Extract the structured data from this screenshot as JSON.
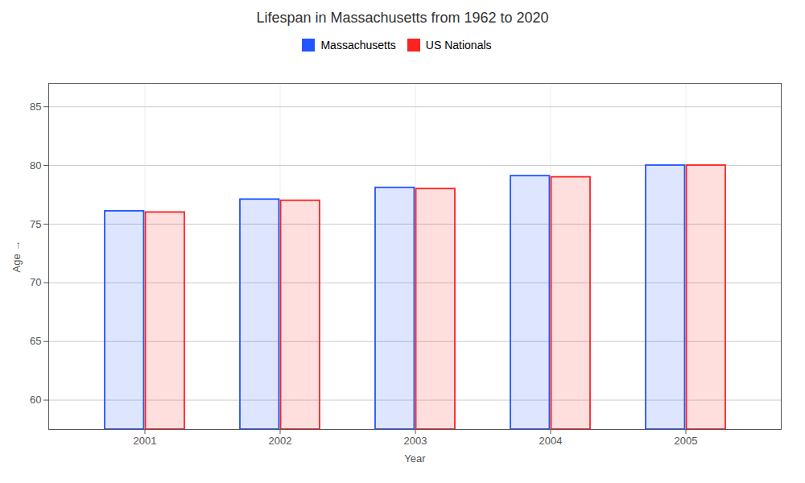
{
  "chart_data": {
    "type": "bar",
    "title": "Lifespan in Massachusetts from 1962 to 2020",
    "xlabel": "Year",
    "ylabel": "Age",
    "categories": [
      "2001",
      "2002",
      "2003",
      "2004",
      "2005"
    ],
    "series": [
      {
        "name": "Massachusetts",
        "color": "#2255ff",
        "values": [
          76.1,
          77.1,
          78.1,
          79.1,
          80.0
        ]
      },
      {
        "name": "US Nationals",
        "color": "#ff2222",
        "values": [
          76.0,
          77.0,
          78.0,
          79.0,
          80.0
        ]
      }
    ],
    "ylim": [
      57.5,
      87
    ],
    "yticks": [
      60,
      65,
      70,
      75,
      80,
      85
    ],
    "grid": true,
    "legend": "top"
  }
}
